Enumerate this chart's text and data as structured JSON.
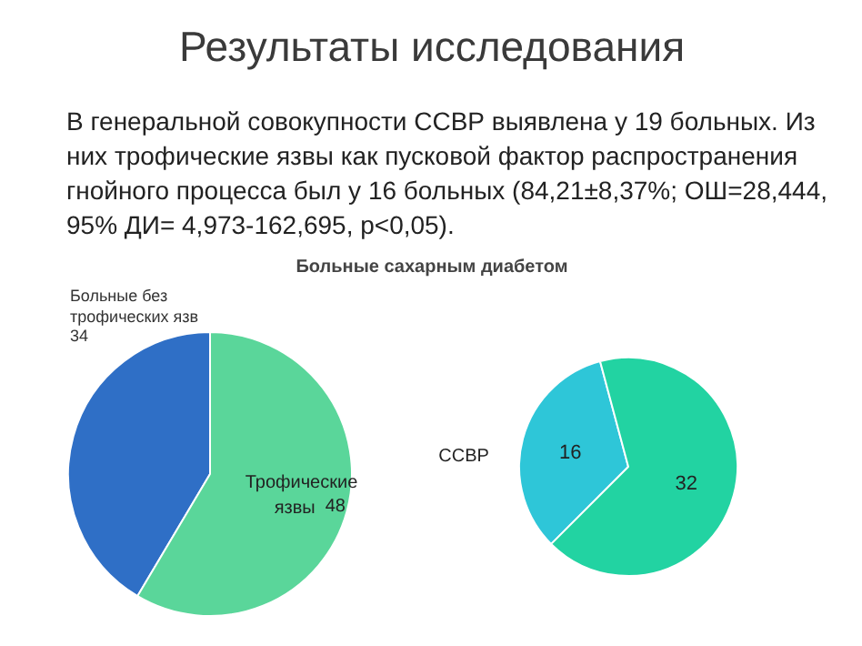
{
  "chart_data": [
    {
      "type": "other",
      "title": "Результаты исследования",
      "subtitle": "В генеральной совокупности ССВР выявлена у 19 больных. Из них трофические язвы как пусковой фактор распространения гнойного процесса был у 16 больных (84,21±8,37%; ОШ=28,444, 95% ДИ= 4,973-162,695, p<0,05)."
    },
    {
      "type": "pie",
      "title": "Больные сахарным диабетом",
      "categories": [
        "Больные без трофических язв",
        "Трофические язвы"
      ],
      "values": [
        34,
        48
      ],
      "colors": [
        "#2f6fc6",
        "#5ad69a"
      ],
      "data_labels": true
    },
    {
      "type": "pie",
      "categories": [
        "ССВР",
        null
      ],
      "values": [
        16,
        32
      ],
      "colors": [
        "#2ec6d8",
        "#22d3a2"
      ],
      "data_labels": true
    }
  ]
}
